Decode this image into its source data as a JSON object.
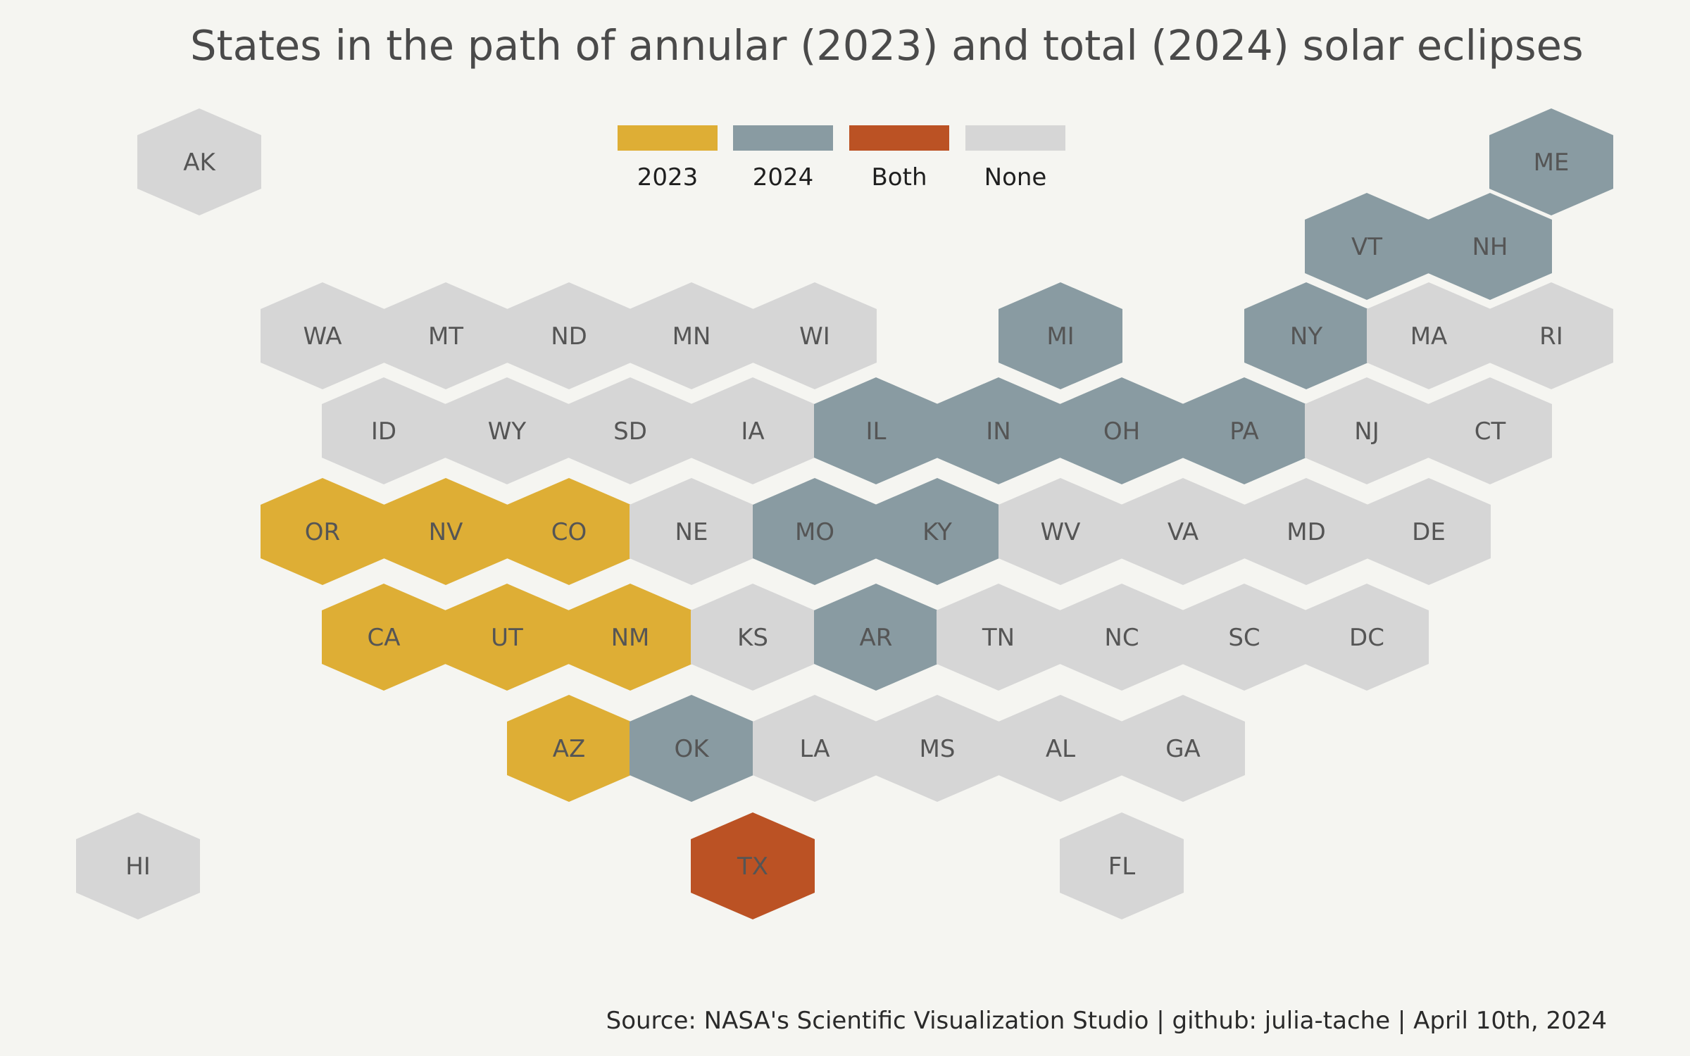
{
  "title": "States in the path of annular (2023) and total (2024) solar eclipses",
  "source": "Source: NASA's Scientific Visualization Studio | github: julia-tache | April 10th, 2024",
  "legend": [
    {
      "key": "2023",
      "label": "2023",
      "color": "#deae35"
    },
    {
      "key": "2024",
      "label": "2024",
      "color": "#899ba2"
    },
    {
      "key": "both",
      "label": "Both",
      "color": "#bb5224"
    },
    {
      "key": "none",
      "label": "None",
      "color": "#d6d6d6"
    }
  ],
  "states": [
    {
      "abbr": "AK",
      "category": "none"
    },
    {
      "abbr": "HI",
      "category": "none"
    },
    {
      "abbr": "ME",
      "category": "2024"
    },
    {
      "abbr": "VT",
      "category": "2024"
    },
    {
      "abbr": "NH",
      "category": "2024"
    },
    {
      "abbr": "WA",
      "category": "none"
    },
    {
      "abbr": "MT",
      "category": "none"
    },
    {
      "abbr": "ND",
      "category": "none"
    },
    {
      "abbr": "MN",
      "category": "none"
    },
    {
      "abbr": "WI",
      "category": "none"
    },
    {
      "abbr": "MI",
      "category": "2024"
    },
    {
      "abbr": "NY",
      "category": "2024"
    },
    {
      "abbr": "MA",
      "category": "none"
    },
    {
      "abbr": "RI",
      "category": "none"
    },
    {
      "abbr": "ID",
      "category": "none"
    },
    {
      "abbr": "WY",
      "category": "none"
    },
    {
      "abbr": "SD",
      "category": "none"
    },
    {
      "abbr": "IA",
      "category": "none"
    },
    {
      "abbr": "IL",
      "category": "2024"
    },
    {
      "abbr": "IN",
      "category": "2024"
    },
    {
      "abbr": "OH",
      "category": "2024"
    },
    {
      "abbr": "PA",
      "category": "2024"
    },
    {
      "abbr": "NJ",
      "category": "none"
    },
    {
      "abbr": "CT",
      "category": "none"
    },
    {
      "abbr": "OR",
      "category": "2023"
    },
    {
      "abbr": "NV",
      "category": "2023"
    },
    {
      "abbr": "CO",
      "category": "2023"
    },
    {
      "abbr": "NE",
      "category": "none"
    },
    {
      "abbr": "MO",
      "category": "2024"
    },
    {
      "abbr": "KY",
      "category": "2024"
    },
    {
      "abbr": "WV",
      "category": "none"
    },
    {
      "abbr": "VA",
      "category": "none"
    },
    {
      "abbr": "MD",
      "category": "none"
    },
    {
      "abbr": "DE",
      "category": "none"
    },
    {
      "abbr": "CA",
      "category": "2023"
    },
    {
      "abbr": "UT",
      "category": "2023"
    },
    {
      "abbr": "NM",
      "category": "2023"
    },
    {
      "abbr": "KS",
      "category": "none"
    },
    {
      "abbr": "AR",
      "category": "2024"
    },
    {
      "abbr": "TN",
      "category": "none"
    },
    {
      "abbr": "NC",
      "category": "none"
    },
    {
      "abbr": "SC",
      "category": "none"
    },
    {
      "abbr": "DC",
      "category": "none"
    },
    {
      "abbr": "AZ",
      "category": "2023"
    },
    {
      "abbr": "OK",
      "category": "2024"
    },
    {
      "abbr": "LA",
      "category": "none"
    },
    {
      "abbr": "MS",
      "category": "none"
    },
    {
      "abbr": "AL",
      "category": "none"
    },
    {
      "abbr": "GA",
      "category": "none"
    },
    {
      "abbr": "TX",
      "category": "both"
    },
    {
      "abbr": "FL",
      "category": "none"
    }
  ]
}
